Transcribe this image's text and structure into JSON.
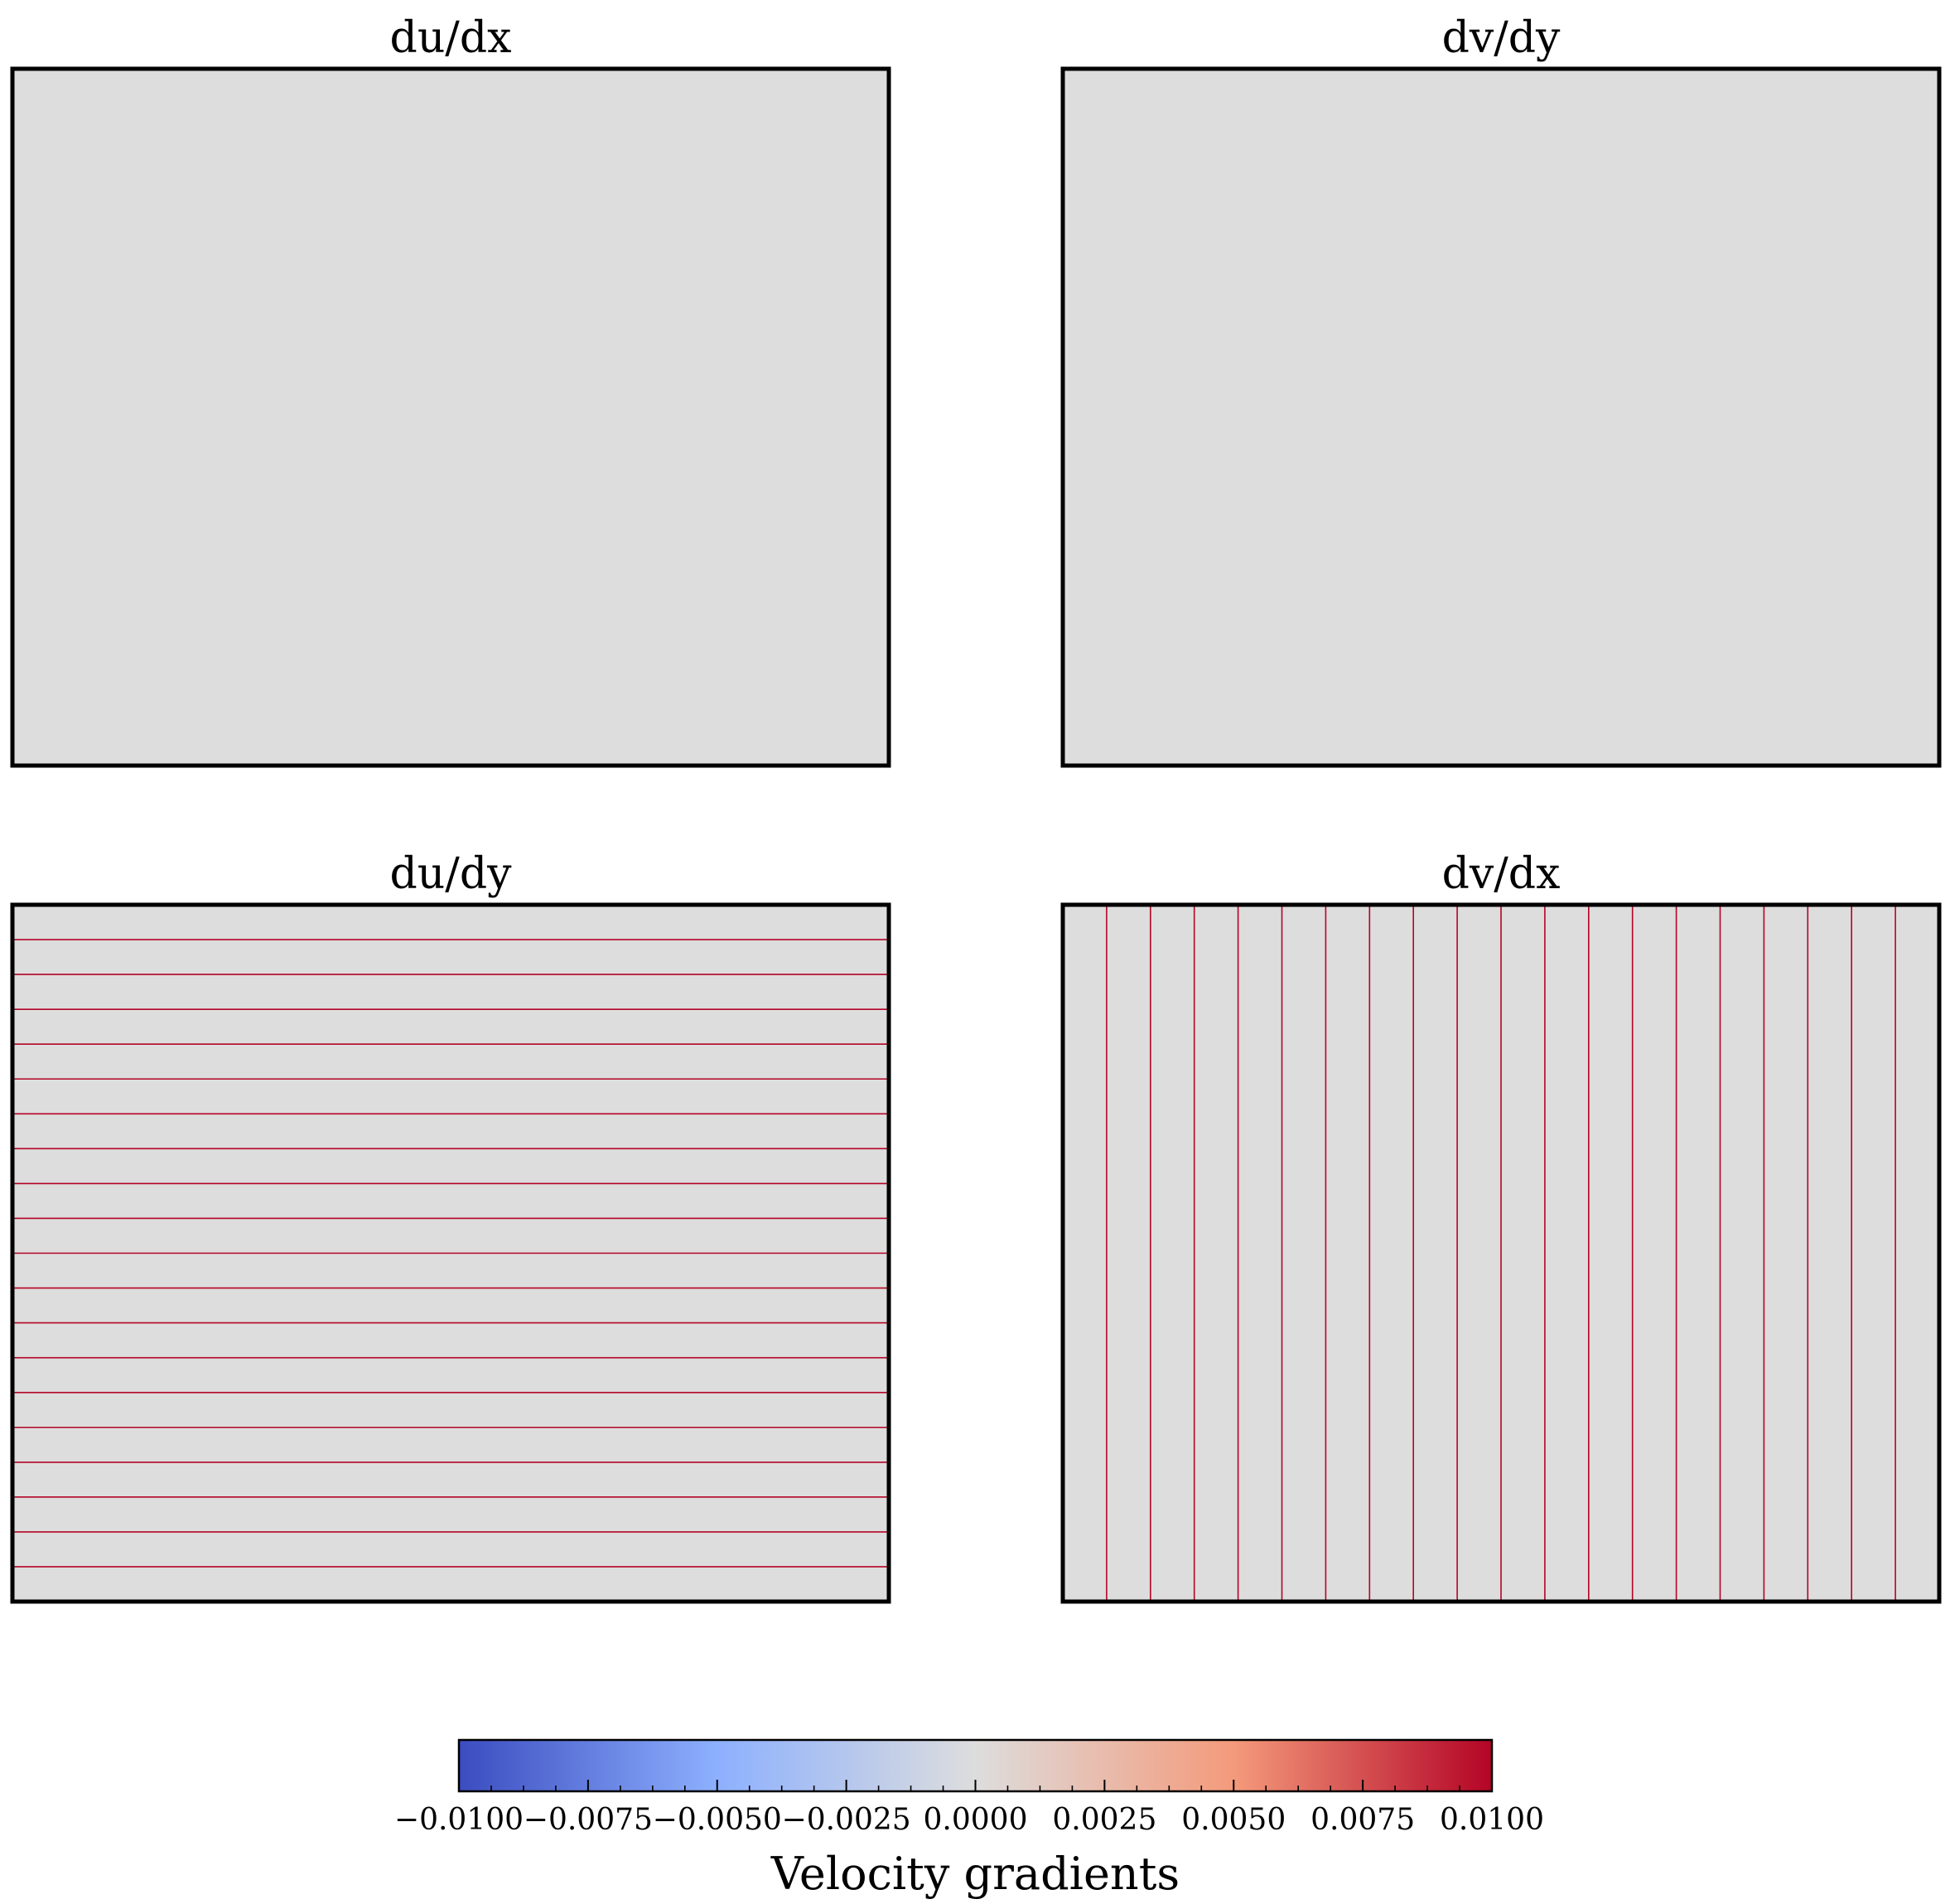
{
  "chart_data": [
    {
      "type": "heatmap",
      "title": "du/dx",
      "field_value": 0.0,
      "contour_lines": "none",
      "axes_visible": false
    },
    {
      "type": "heatmap",
      "title": "dv/dy",
      "field_value": 0.0,
      "contour_lines": "none",
      "axes_visible": false
    },
    {
      "type": "heatmap",
      "title": "du/dy",
      "field_value": 0.0,
      "contour_lines": "horizontal",
      "contour_line_count": 19,
      "contour_line_color": "#b40426",
      "axes_visible": false
    },
    {
      "type": "heatmap",
      "title": "dv/dx",
      "field_value": 0.0,
      "contour_lines": "vertical",
      "contour_line_count": 19,
      "contour_line_color": "#b40426",
      "axes_visible": false
    }
  ],
  "colorbar": {
    "label": "Velocity gradients",
    "range": [
      -0.01,
      0.01
    ],
    "colormap": "coolwarm",
    "colormap_stops": [
      "#3b4cc0",
      "#8db0fe",
      "#dddddd",
      "#f49a7b",
      "#b40426"
    ],
    "ticks": [
      -0.01,
      -0.0075,
      -0.005,
      -0.0025,
      0.0,
      0.0025,
      0.005,
      0.0075,
      0.01
    ],
    "tick_labels": [
      "−0.0100",
      "−0.0075",
      "−0.0050",
      "−0.0025",
      "0.0000",
      "0.0025",
      "0.0050",
      "0.0075",
      "0.0100"
    ],
    "minor_ticks_per_interval": 4
  },
  "colors": {
    "background_field": "#dddddd",
    "frame": "#000000"
  }
}
